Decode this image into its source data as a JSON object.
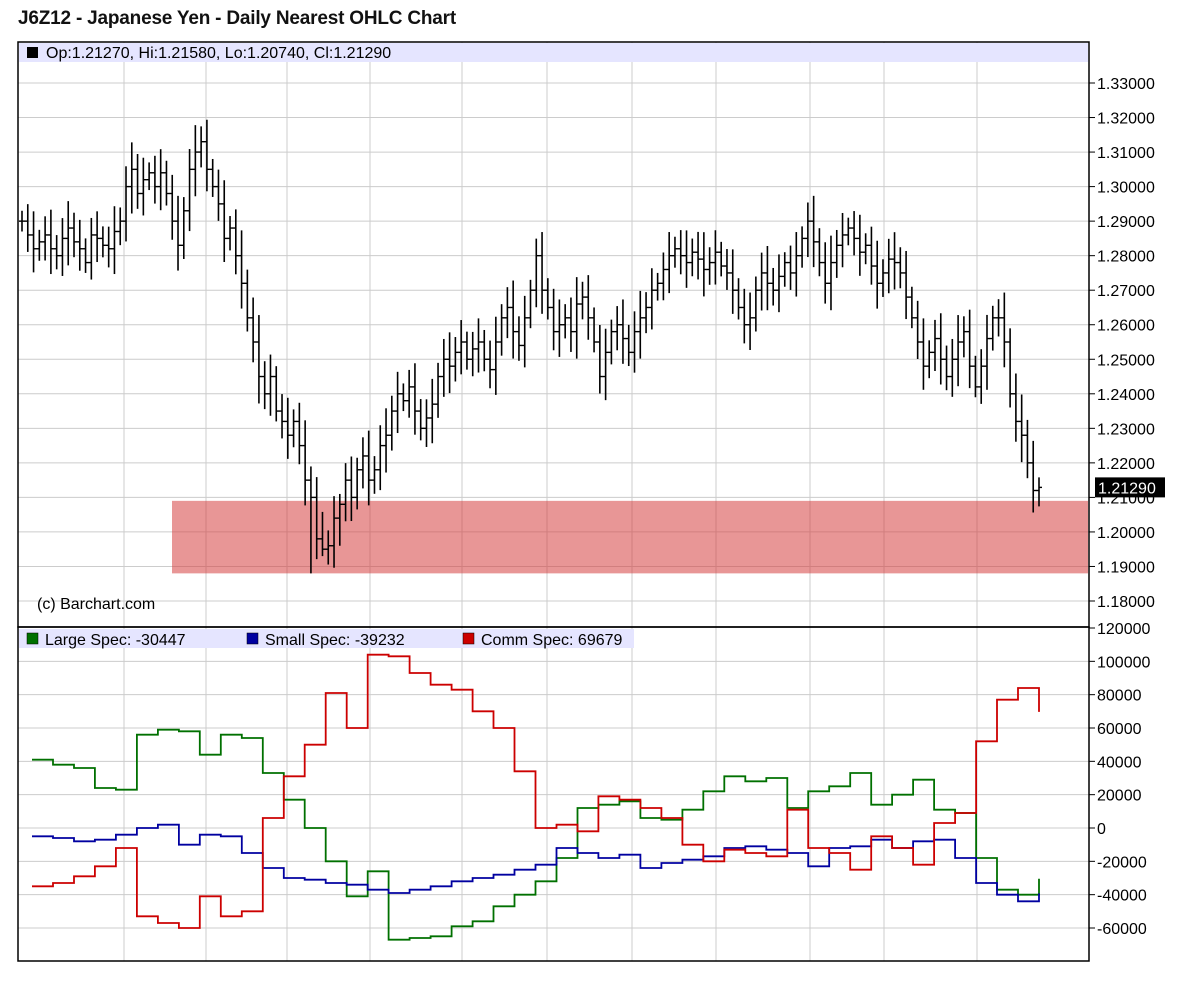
{
  "title": "J6Z12 - Japanese Yen - Daily Nearest OHLC Chart",
  "copyright": "(c) Barchart.com",
  "price_legend": "Op:1.21270, Hi:1.21580, Lo:1.20740, Cl:1.21290",
  "last_price_label": "1.21290",
  "colors": {
    "grid": "#cccccc",
    "legend_band": "#e5e5ff",
    "price_bars": "#000000",
    "support_zone": "#d64040",
    "large_spec": "#007000",
    "small_spec": "#0000a0",
    "comm_spec": "#cc0000"
  },
  "chart_data": [
    {
      "type": "ohlc",
      "ylim": [
        1.175,
        1.34
      ],
      "yticks": [
        "1.18000",
        "1.19000",
        "1.20000",
        "1.21000",
        "1.22000",
        "1.23000",
        "1.24000",
        "1.25000",
        "1.26000",
        "1.27000",
        "1.28000",
        "1.29000",
        "1.30000",
        "1.31000",
        "1.32000",
        "1.33000"
      ],
      "last": {
        "open": 1.2127,
        "high": 1.2158,
        "low": 1.2074,
        "close": 1.2129
      },
      "highlight_zone": {
        "from": 1.188,
        "to": 1.209
      },
      "closes": [
        1.29,
        1.286,
        1.282,
        1.284,
        1.286,
        1.282,
        1.28,
        1.285,
        1.288,
        1.284,
        1.282,
        1.278,
        1.286,
        1.285,
        1.283,
        1.282,
        1.287,
        1.29,
        1.3,
        1.305,
        1.298,
        1.302,
        1.304,
        1.3,
        1.304,
        1.298,
        1.29,
        1.283,
        1.293,
        1.305,
        1.31,
        1.313,
        1.305,
        1.3,
        1.295,
        1.285,
        1.288,
        1.28,
        1.272,
        1.262,
        1.255,
        1.245,
        1.24,
        1.245,
        1.235,
        1.232,
        1.228,
        1.232,
        1.225,
        1.215,
        1.21,
        1.198,
        1.195,
        1.196,
        1.204,
        1.208,
        1.215,
        1.21,
        1.218,
        1.222,
        1.215,
        1.218,
        1.225,
        1.228,
        1.235,
        1.24,
        1.238,
        1.242,
        1.235,
        1.23,
        1.233,
        1.237,
        1.245,
        1.25,
        1.248,
        1.252,
        1.255,
        1.25,
        1.253,
        1.255,
        1.25,
        1.247,
        1.255,
        1.262,
        1.265,
        1.258,
        1.254,
        1.262,
        1.27,
        1.28,
        1.27,
        1.265,
        1.258,
        1.26,
        1.262,
        1.258,
        1.266,
        1.268,
        1.262,
        1.255,
        1.245,
        1.252,
        1.258,
        1.26,
        1.256,
        1.252,
        1.258,
        1.262,
        1.265,
        1.27,
        1.272,
        1.276,
        1.28,
        1.282,
        1.28,
        1.278,
        1.281,
        1.279,
        1.276,
        1.278,
        1.281,
        1.277,
        1.275,
        1.27,
        1.265,
        1.26,
        1.262,
        1.27,
        1.275,
        1.272,
        1.27,
        1.274,
        1.278,
        1.275,
        1.28,
        1.285,
        1.29,
        1.284,
        1.278,
        1.272,
        1.278,
        1.283,
        1.286,
        1.288,
        1.285,
        1.281,
        1.283,
        1.277,
        1.272,
        1.275,
        1.279,
        1.278,
        1.275,
        1.268,
        1.262,
        1.255,
        1.248,
        1.252,
        1.256,
        1.25,
        1.245,
        1.25,
        1.255,
        1.258,
        1.248,
        1.242,
        1.248,
        1.256,
        1.262,
        1.262,
        1.255,
        1.24,
        1.232,
        1.228,
        1.22,
        1.212,
        1.2129
      ],
      "lows_marked": [
        1.188,
        1.193,
        1.196
      ]
    },
    {
      "type": "line",
      "step": true,
      "ylim": [
        -80000,
        120000
      ],
      "yticks": [
        "120000",
        "100000",
        "80000",
        "60000",
        "40000",
        "20000",
        "0",
        "-20000",
        "-40000",
        "-60000"
      ],
      "series": [
        {
          "name": "Large Spec",
          "legend": "Large Spec: -30447",
          "values": [
            41000,
            38000,
            36000,
            24000,
            23000,
            56000,
            59000,
            58000,
            44000,
            56000,
            54000,
            33000,
            17000,
            0,
            -20000,
            -41000,
            -26000,
            -67000,
            -66000,
            -65000,
            -59000,
            -56000,
            -47000,
            -40000,
            -32000,
            -18000,
            12000,
            14000,
            16000,
            6000,
            5000,
            11000,
            22000,
            31000,
            28000,
            30000,
            12000,
            22000,
            25000,
            33000,
            14000,
            20000,
            29000,
            11000,
            9000,
            -18000,
            -37000,
            -40000,
            -30447
          ]
        },
        {
          "name": "Small Spec",
          "legend": "Small Spec: -39232",
          "values": [
            -5000,
            -6000,
            -8000,
            -7000,
            -4000,
            0,
            2000,
            -10000,
            -4000,
            -5000,
            -15000,
            -24000,
            -30000,
            -31000,
            -33000,
            -34000,
            -37000,
            -39000,
            -37000,
            -35000,
            -32000,
            -30000,
            -28000,
            -25000,
            -22000,
            -12000,
            -15000,
            -18000,
            -16000,
            -24000,
            -21000,
            -19000,
            -17000,
            -12000,
            -11000,
            -13000,
            -15000,
            -23000,
            -12000,
            -11000,
            -7000,
            -12000,
            -8000,
            -7000,
            -18000,
            -33000,
            -40000,
            -44000,
            -39232
          ]
        },
        {
          "name": "Comm Spec",
          "legend": "Comm Spec: 69679",
          "values": [
            -35000,
            -33000,
            -29000,
            -23000,
            -12000,
            -53000,
            -57000,
            -60000,
            -41000,
            -53000,
            -50000,
            6000,
            31000,
            50000,
            81000,
            60000,
            104000,
            103000,
            93000,
            86000,
            83000,
            70000,
            60000,
            34000,
            0,
            2000,
            -2000,
            19000,
            17000,
            12000,
            6000,
            -10000,
            -20000,
            -13000,
            -15000,
            -17000,
            11000,
            -12000,
            -15000,
            -25000,
            -5000,
            -12000,
            -22000,
            3000,
            9000,
            52000,
            77000,
            84000,
            69679
          ]
        }
      ]
    }
  ]
}
